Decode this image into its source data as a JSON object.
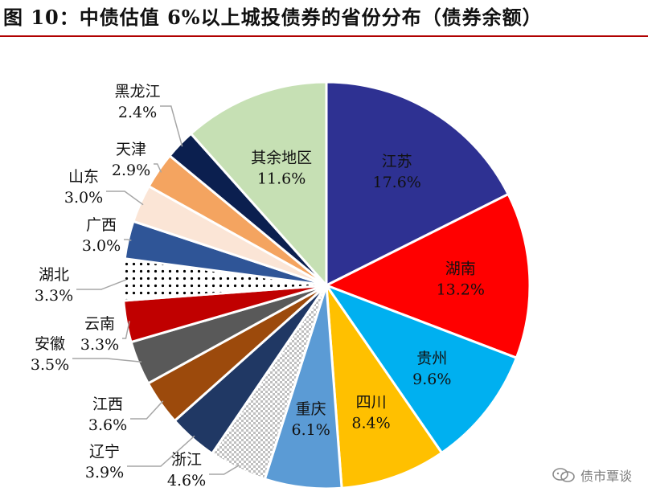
{
  "title": "图 10：中债估值 6%以上城投债券的省份分布（债券余额）",
  "watermark": "债市覃谈",
  "chart_data": {
    "type": "pie",
    "title": "图 10：中债估值 6%以上城投债券的省份分布（债券余额）",
    "slices": [
      {
        "name": "江苏",
        "value": 17.6,
        "label": "17.6%",
        "color": "#2e3192"
      },
      {
        "name": "湖南",
        "value": 13.2,
        "label": "13.2%",
        "color": "#ff0000"
      },
      {
        "name": "贵州",
        "value": 9.6,
        "label": "9.6%",
        "color": "#00b0f0"
      },
      {
        "name": "四川",
        "value": 8.4,
        "label": "8.4%",
        "color": "#ffc000"
      },
      {
        "name": "重庆",
        "value": 6.1,
        "label": "6.1%",
        "color": "#5b9bd5"
      },
      {
        "name": "浙江",
        "value": 4.6,
        "label": "4.6%",
        "color": "#bfbfbf",
        "pattern": "checker"
      },
      {
        "name": "辽宁",
        "value": 3.9,
        "label": "3.9%",
        "color": "#203864"
      },
      {
        "name": "江西",
        "value": 3.6,
        "label": "3.6%",
        "color": "#9c4a0c"
      },
      {
        "name": "安徽",
        "value": 3.5,
        "label": "3.5%",
        "color": "#595959"
      },
      {
        "name": "云南",
        "value": 3.3,
        "label": "3.3%",
        "color": "#c00000"
      },
      {
        "name": "湖北",
        "value": 3.3,
        "label": "3.3%",
        "color": "#000000",
        "pattern": "dots"
      },
      {
        "name": "广西",
        "value": 3.0,
        "label": "3.0%",
        "color": "#2f5597"
      },
      {
        "name": "山东",
        "value": 3.0,
        "label": "3.0%",
        "color": "#fbe5d6"
      },
      {
        "name": "天津",
        "value": 2.9,
        "label": "2.9%",
        "color": "#f4a460"
      },
      {
        "name": "黑龙江",
        "value": 2.4,
        "label": "2.4%",
        "color": "#0b1f4f"
      },
      {
        "name": "其余地区",
        "value": 11.6,
        "label": "11.6%",
        "color": "#c6e0b4"
      }
    ]
  }
}
